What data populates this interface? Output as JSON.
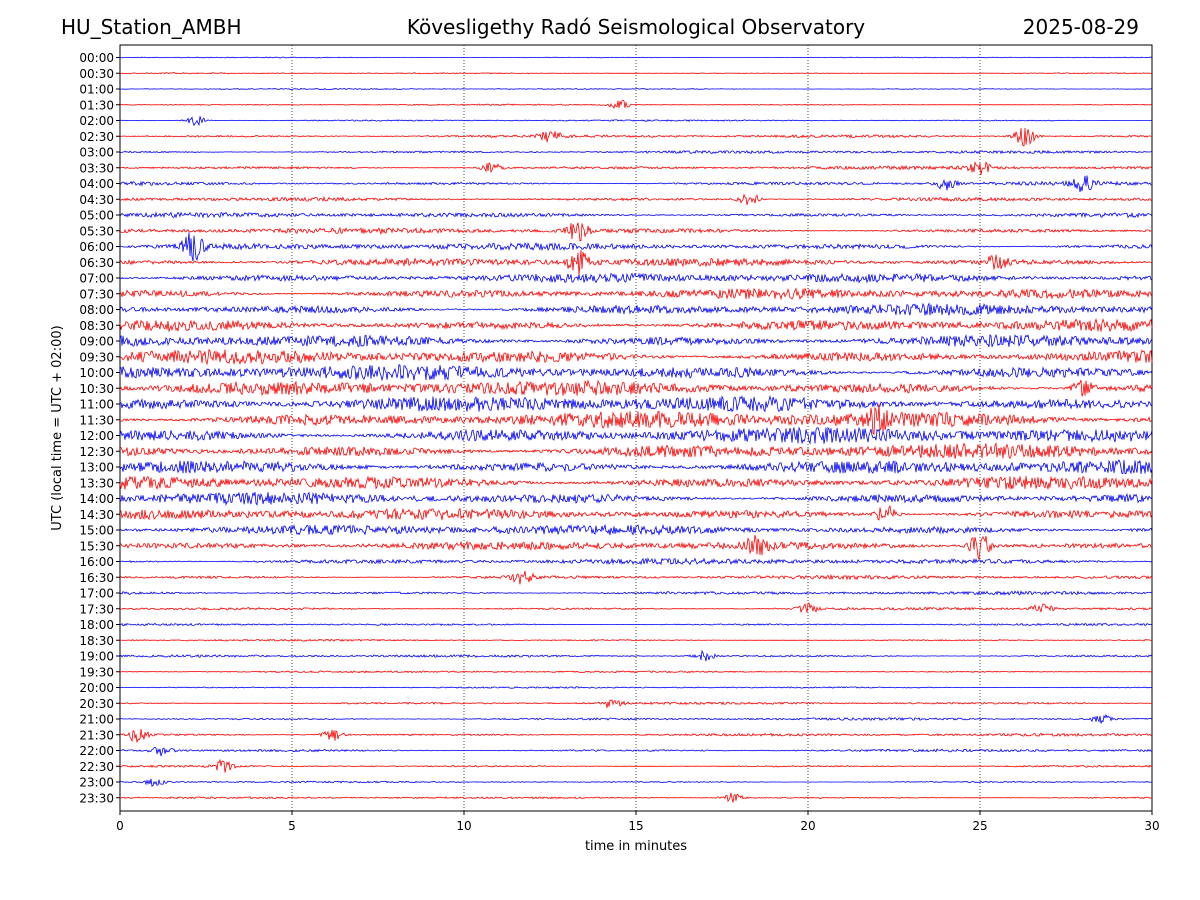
{
  "header": {
    "station": "HU_Station_AMBH",
    "observatory": "Kövesligethy Radó Seismological Observatory",
    "date": "2025-08-29"
  },
  "chart_data": {
    "type": "line",
    "title": "Kövesligethy Radó Seismological Observatory",
    "xlabel": "time in minutes",
    "ylabel": "UTC (local time = UTC + 02:00)",
    "xlim": [
      0,
      30
    ],
    "xticks": [
      0,
      5,
      10,
      15,
      20,
      25,
      30
    ],
    "grid": "vertical dotted lines at x ticks",
    "colors": {
      "even_rows": "#0000ff",
      "odd_rows": "#ff0000"
    },
    "rows": [
      "00:00",
      "00:30",
      "01:00",
      "01:30",
      "02:00",
      "02:30",
      "03:00",
      "03:30",
      "04:00",
      "04:30",
      "05:00",
      "05:30",
      "06:00",
      "06:30",
      "07:00",
      "07:30",
      "08:00",
      "08:30",
      "09:00",
      "09:30",
      "10:00",
      "10:30",
      "11:00",
      "11:30",
      "12:00",
      "12:30",
      "13:00",
      "13:30",
      "14:00",
      "14:30",
      "15:00",
      "15:30",
      "16:00",
      "16:30",
      "17:00",
      "17:30",
      "18:00",
      "18:30",
      "19:00",
      "19:30",
      "20:00",
      "20:30",
      "21:00",
      "21:30",
      "22:00",
      "22:30",
      "23:00",
      "23:30"
    ],
    "amplitude_level": [
      0.5,
      0.6,
      0.6,
      0.7,
      0.8,
      1.5,
      1.6,
      1.9,
      2.0,
      2.2,
      2.6,
      3.0,
      3.6,
      4.2,
      5.0,
      5.5,
      6.0,
      6.5,
      7.0,
      7.5,
      8.0,
      8.0,
      8.5,
      9.0,
      8.5,
      8.0,
      7.8,
      7.5,
      6.5,
      6.0,
      5.5,
      4.5,
      3.0,
      2.0,
      1.8,
      1.5,
      1.2,
      1.0,
      1.4,
      1.0,
      0.8,
      1.2,
      1.3,
      1.5,
      1.5,
      1.0,
      0.9,
      1.0
    ],
    "events": [
      {
        "row": "01:30",
        "minute": 14.5,
        "strength": 5
      },
      {
        "row": "02:00",
        "minute": 2.2,
        "strength": 5
      },
      {
        "row": "02:30",
        "minute": 12.5,
        "strength": 6
      },
      {
        "row": "02:30",
        "minute": 26.3,
        "strength": 10
      },
      {
        "row": "03:30",
        "minute": 10.8,
        "strength": 5
      },
      {
        "row": "03:30",
        "minute": 25.0,
        "strength": 6
      },
      {
        "row": "04:00",
        "minute": 28.0,
        "strength": 8
      },
      {
        "row": "04:00",
        "minute": 24.0,
        "strength": 6
      },
      {
        "row": "04:30",
        "minute": 18.3,
        "strength": 7
      },
      {
        "row": "05:30",
        "minute": 13.3,
        "strength": 10
      },
      {
        "row": "06:00",
        "minute": 2.1,
        "strength": 14
      },
      {
        "row": "06:30",
        "minute": 13.3,
        "strength": 12
      },
      {
        "row": "06:30",
        "minute": 25.5,
        "strength": 8
      },
      {
        "row": "10:30",
        "minute": 28.0,
        "strength": 10
      },
      {
        "row": "11:30",
        "minute": 22.0,
        "strength": 10
      },
      {
        "row": "14:30",
        "minute": 22.3,
        "strength": 10
      },
      {
        "row": "15:30",
        "minute": 25.0,
        "strength": 14
      },
      {
        "row": "15:30",
        "minute": 18.5,
        "strength": 8
      },
      {
        "row": "16:30",
        "minute": 11.7,
        "strength": 7
      },
      {
        "row": "17:30",
        "minute": 20.0,
        "strength": 5
      },
      {
        "row": "17:30",
        "minute": 26.8,
        "strength": 6
      },
      {
        "row": "19:00",
        "minute": 17.0,
        "strength": 5
      },
      {
        "row": "20:30",
        "minute": 14.3,
        "strength": 5
      },
      {
        "row": "21:00",
        "minute": 28.5,
        "strength": 5
      },
      {
        "row": "21:30",
        "minute": 0.5,
        "strength": 7
      },
      {
        "row": "21:30",
        "minute": 6.2,
        "strength": 6
      },
      {
        "row": "22:00",
        "minute": 1.2,
        "strength": 5
      },
      {
        "row": "22:30",
        "minute": 3.0,
        "strength": 6
      },
      {
        "row": "23:00",
        "minute": 1.0,
        "strength": 4
      },
      {
        "row": "23:30",
        "minute": 17.8,
        "strength": 5
      }
    ]
  }
}
